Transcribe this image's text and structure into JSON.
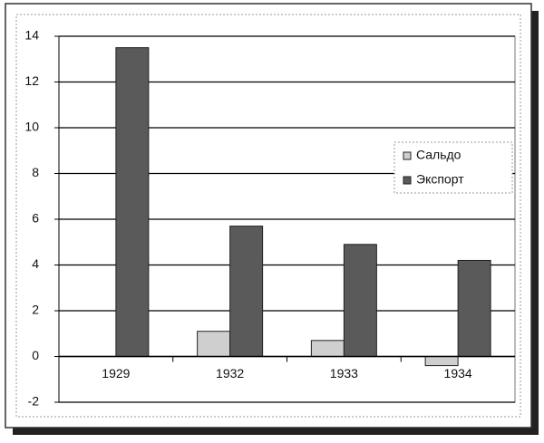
{
  "chart_data": {
    "type": "bar",
    "categories": [
      "1929",
      "1932",
      "1933",
      "1934"
    ],
    "series": [
      {
        "name": "Сальдо",
        "color": "#cfcfcf",
        "values": [
          null,
          1.1,
          0.7,
          -0.4
        ]
      },
      {
        "name": "Экспорт",
        "color": "#5a5a5a",
        "values": [
          13.5,
          5.7,
          4.9,
          4.2
        ]
      }
    ],
    "ylim": [
      -2,
      14
    ],
    "yticks": [
      -2,
      0,
      2,
      4,
      6,
      8,
      10,
      12,
      14
    ],
    "grid": true,
    "legend": "right"
  }
}
